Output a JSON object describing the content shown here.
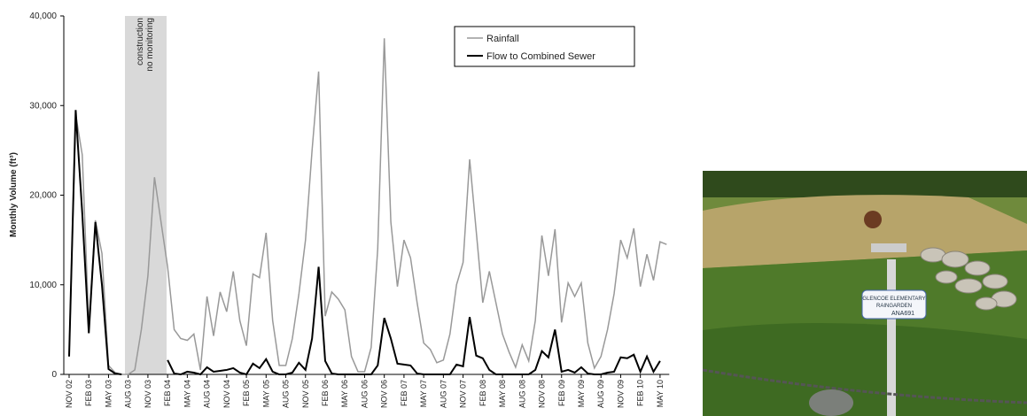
{
  "chart_data": {
    "type": "line",
    "y_label": "Monthly Volume (ft³)",
    "annotation": [
      "construction",
      "no monitoring"
    ],
    "categories": [
      "NOV 02",
      null,
      null,
      "FEB 03",
      null,
      null,
      "MAY 03",
      null,
      null,
      "AUG 03",
      null,
      null,
      "NOV 03",
      null,
      null,
      "FEB 04",
      null,
      null,
      "MAY 04",
      null,
      null,
      "AUG 04",
      null,
      null,
      "NOV 04",
      null,
      null,
      "FEB 05",
      null,
      null,
      "MAY 05",
      null,
      null,
      "AUG 05",
      null,
      null,
      "NOV 05",
      null,
      null,
      "FEB 06",
      null,
      null,
      "MAY 06",
      null,
      null,
      "AUG 06",
      null,
      null,
      "NOV 06",
      null,
      null,
      "FEB 07",
      null,
      null,
      "MAY 07",
      null,
      null,
      "AUG 07",
      null,
      null,
      "NOV 07",
      null,
      null,
      "FEB 08",
      null,
      null,
      "MAY 08",
      null,
      null,
      "AUG 08",
      null,
      null,
      "NOV 08",
      null,
      null,
      "FEB 09",
      null,
      null,
      "MAY 09",
      null,
      null,
      "AUG 09",
      null,
      null,
      "NOV 09",
      null,
      null,
      "FEB 10",
      null,
      null,
      "MAY 10",
      null
    ],
    "series": [
      {
        "name": "Rainfall",
        "color": "#999999",
        "values": [
          2000,
          29000,
          24500,
          5500,
          17200,
          13500,
          1000,
          200,
          0,
          0,
          500,
          5000,
          11000,
          22000,
          17000,
          12000,
          5000,
          4000,
          3800,
          4500,
          500,
          8700,
          4300,
          9200,
          7000,
          11500,
          6000,
          3200,
          11200,
          10800,
          15800,
          6000,
          1000,
          1000,
          4000,
          9000,
          15000,
          25000,
          33800,
          6500,
          9200,
          8400,
          7200,
          2000,
          300,
          300,
          3000,
          14000,
          37500,
          17000,
          9800,
          15000,
          13000,
          8000,
          3500,
          2800,
          1300,
          1600,
          4500,
          10000,
          12500,
          24000,
          16000,
          8000,
          11500,
          8000,
          4500,
          2500,
          800,
          3300,
          1500,
          6000,
          15500,
          11000,
          16200,
          5800,
          10200,
          8700,
          10200,
          3500,
          700,
          2000,
          5000,
          9000,
          15000,
          13000,
          16300,
          9800,
          13400,
          10500,
          14800,
          14500
        ]
      },
      {
        "name": "Flow to Combined Sewer",
        "color": "#000000",
        "values": [
          2000,
          29500,
          18000,
          4600,
          17000,
          10000,
          600,
          100,
          0,
          null,
          null,
          null,
          null,
          null,
          null,
          1600,
          100,
          0,
          300,
          200,
          0,
          800,
          300,
          400,
          500,
          700,
          200,
          0,
          1200,
          700,
          1700,
          300,
          0,
          0,
          200,
          1300,
          500,
          4000,
          12000,
          1500,
          100,
          0,
          0,
          0,
          0,
          0,
          0,
          1000,
          6300,
          4000,
          1200,
          1100,
          1000,
          100,
          0,
          0,
          0,
          0,
          0,
          1100,
          900,
          6400,
          2100,
          1800,
          500,
          0,
          0,
          0,
          0,
          0,
          0,
          500,
          2600,
          1900,
          5000,
          300,
          500,
          200,
          800,
          100,
          0,
          0,
          200,
          300,
          1900,
          1800,
          2200,
          300,
          2000,
          300,
          1500,
          null
        ]
      }
    ],
    "ylim": [
      0,
      40000
    ],
    "yticks": [
      0,
      {
        "value": 10000,
        "label": "10,000"
      },
      {
        "value": 20000,
        "label": "20,000"
      },
      {
        "value": 30000,
        "label": "30,000"
      },
      {
        "value": 40000,
        "label": "40,000"
      }
    ],
    "legend": "top-right"
  },
  "photo": {
    "sign": [
      "GLENCOE ELEMENTARY",
      "RAINGARDEN",
      "ANA691"
    ]
  }
}
